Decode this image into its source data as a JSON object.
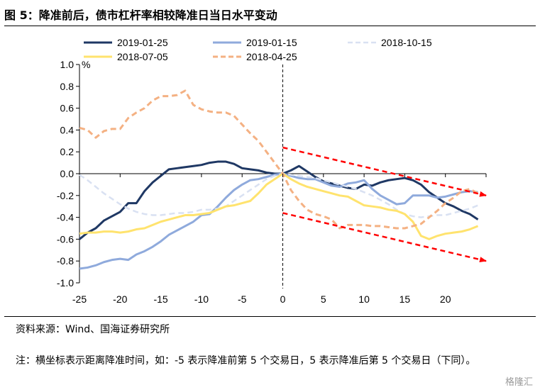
{
  "title": "图 5：降准前后，债市杠杆率相较降准日当日水平变动",
  "source": "资料来源：Wind、国海证券研究所",
  "note": "注：横坐标表示距离降准时间，如：-5 表示降准前第 5 个交易日，5 表示降准后第 5 个交易日（下同）。",
  "watermark": "格隆汇",
  "chart_data": {
    "type": "line",
    "ylabel": "%",
    "xlim": [
      -25,
      25
    ],
    "ylim": [
      -1.0,
      1.0
    ],
    "xticks": [
      -25,
      -20,
      -15,
      -10,
      -5,
      0,
      5,
      10,
      15,
      20
    ],
    "xtick_labels": [
      "-25",
      "-20",
      "-15",
      "-10",
      "-5",
      "0",
      "5",
      "10",
      "15",
      "20"
    ],
    "yticks": [
      -1.0,
      -0.8,
      -0.6,
      -0.4,
      -0.2,
      0.0,
      0.2,
      0.4,
      0.6,
      0.8,
      1.0
    ],
    "ytick_labels": [
      "-1.0",
      "-0.8",
      "-0.6",
      "-0.4",
      "-0.2",
      "0.0",
      "0.2",
      "0.4",
      "0.6",
      "0.8",
      "1.0"
    ],
    "legend_position": "top",
    "x": [
      -25,
      -24,
      -23,
      -22,
      -21,
      -20,
      -19,
      -18,
      -17,
      -16,
      -15,
      -14,
      -13,
      -12,
      -11,
      -10,
      -9,
      -8,
      -7,
      -6,
      -5,
      -4,
      -3,
      -2,
      -1,
      0,
      1,
      2,
      3,
      4,
      5,
      6,
      7,
      8,
      9,
      10,
      11,
      12,
      13,
      14,
      15,
      16,
      17,
      18,
      19,
      20,
      21,
      22,
      23,
      24
    ],
    "series": [
      {
        "name": "2019-01-25",
        "color": "#1f3864",
        "dash": "solid",
        "width": 3,
        "values": [
          -0.6,
          -0.54,
          -0.5,
          -0.43,
          -0.39,
          -0.35,
          -0.27,
          -0.27,
          -0.16,
          -0.08,
          -0.02,
          0.04,
          0.05,
          0.06,
          0.07,
          0.08,
          0.1,
          0.11,
          0.11,
          0.09,
          0.05,
          0.04,
          0.03,
          0.01,
          0.0,
          0.0,
          0.03,
          0.07,
          0.02,
          -0.03,
          -0.07,
          -0.09,
          -0.11,
          -0.13,
          -0.14,
          -0.1,
          -0.11,
          -0.08,
          -0.06,
          -0.05,
          -0.04,
          -0.06,
          -0.1,
          -0.17,
          -0.22,
          -0.27,
          -0.3,
          -0.34,
          -0.37,
          -0.42
        ]
      },
      {
        "name": "2019-01-15",
        "color": "#8faadc",
        "dash": "solid",
        "width": 3,
        "values": [
          -0.87,
          -0.86,
          -0.84,
          -0.81,
          -0.79,
          -0.78,
          -0.79,
          -0.74,
          -0.71,
          -0.67,
          -0.62,
          -0.56,
          -0.52,
          -0.48,
          -0.44,
          -0.38,
          -0.37,
          -0.3,
          -0.22,
          -0.15,
          -0.1,
          -0.06,
          -0.05,
          -0.03,
          -0.01,
          0.0,
          -0.02,
          -0.04,
          -0.05,
          -0.05,
          -0.08,
          -0.11,
          -0.12,
          -0.09,
          -0.08,
          -0.06,
          -0.14,
          -0.2,
          -0.24,
          -0.28,
          -0.27,
          -0.2,
          -0.2,
          -0.2,
          -0.22,
          -0.21,
          -0.19,
          -0.17,
          -0.16,
          -0.17
        ]
      },
      {
        "name": "2018-10-15",
        "color": "#d9e1f2",
        "dash": "dashed",
        "width": 2.5,
        "values": [
          -0.01,
          -0.06,
          -0.12,
          -0.18,
          -0.23,
          -0.28,
          -0.32,
          -0.35,
          -0.37,
          -0.38,
          -0.38,
          -0.37,
          -0.36,
          -0.36,
          -0.35,
          -0.33,
          -0.33,
          -0.32,
          -0.3,
          -0.25,
          -0.2,
          -0.15,
          -0.1,
          -0.05,
          -0.02,
          0.0,
          -0.01,
          -0.02,
          -0.03,
          -0.04,
          -0.06,
          -0.08,
          -0.1,
          -0.12,
          -0.14,
          -0.17,
          -0.2,
          -0.24,
          -0.28,
          -0.33,
          -0.37,
          -0.39,
          -0.4,
          -0.39,
          -0.38,
          -0.38,
          -0.36,
          -0.34,
          -0.32,
          -0.29
        ]
      },
      {
        "name": "2018-07-05",
        "color": "#ffe36e",
        "dash": "solid",
        "width": 3,
        "values": [
          -0.55,
          -0.54,
          -0.54,
          -0.53,
          -0.53,
          -0.54,
          -0.53,
          -0.51,
          -0.5,
          -0.47,
          -0.44,
          -0.42,
          -0.4,
          -0.38,
          -0.38,
          -0.37,
          -0.36,
          -0.33,
          -0.3,
          -0.29,
          -0.27,
          -0.25,
          -0.18,
          -0.1,
          -0.05,
          0.0,
          -0.05,
          -0.09,
          -0.12,
          -0.14,
          -0.16,
          -0.18,
          -0.2,
          -0.21,
          -0.25,
          -0.29,
          -0.3,
          -0.31,
          -0.33,
          -0.34,
          -0.37,
          -0.44,
          -0.57,
          -0.6,
          -0.57,
          -0.55,
          -0.54,
          -0.53,
          -0.51,
          -0.48
        ]
      },
      {
        "name": "2018-04-25",
        "color": "#f4b183",
        "dash": "dashed",
        "width": 3,
        "values": [
          0.42,
          0.4,
          0.33,
          0.39,
          0.41,
          0.41,
          0.51,
          0.56,
          0.6,
          0.67,
          0.71,
          0.71,
          0.72,
          0.76,
          0.63,
          0.59,
          0.57,
          0.56,
          0.56,
          0.53,
          0.45,
          0.37,
          0.3,
          0.2,
          0.1,
          0.0,
          -0.15,
          -0.25,
          -0.33,
          -0.37,
          -0.39,
          -0.42,
          -0.5,
          -0.47,
          -0.47,
          -0.47,
          -0.48,
          -0.48,
          -0.49,
          -0.5,
          -0.5,
          -0.48,
          -0.46,
          -0.4,
          -0.34,
          -0.27,
          -0.22,
          -0.16,
          -0.14,
          -0.18
        ]
      }
    ],
    "annotations": [
      {
        "type": "vertical-dashed-line",
        "x": 0
      },
      {
        "type": "arrow",
        "color": "#ff0000",
        "from": [
          0,
          0.24
        ],
        "to": [
          25,
          -0.2
        ]
      },
      {
        "type": "arrow",
        "color": "#ff0000",
        "from": [
          0,
          -0.36
        ],
        "to": [
          25,
          -0.8
        ]
      }
    ]
  }
}
